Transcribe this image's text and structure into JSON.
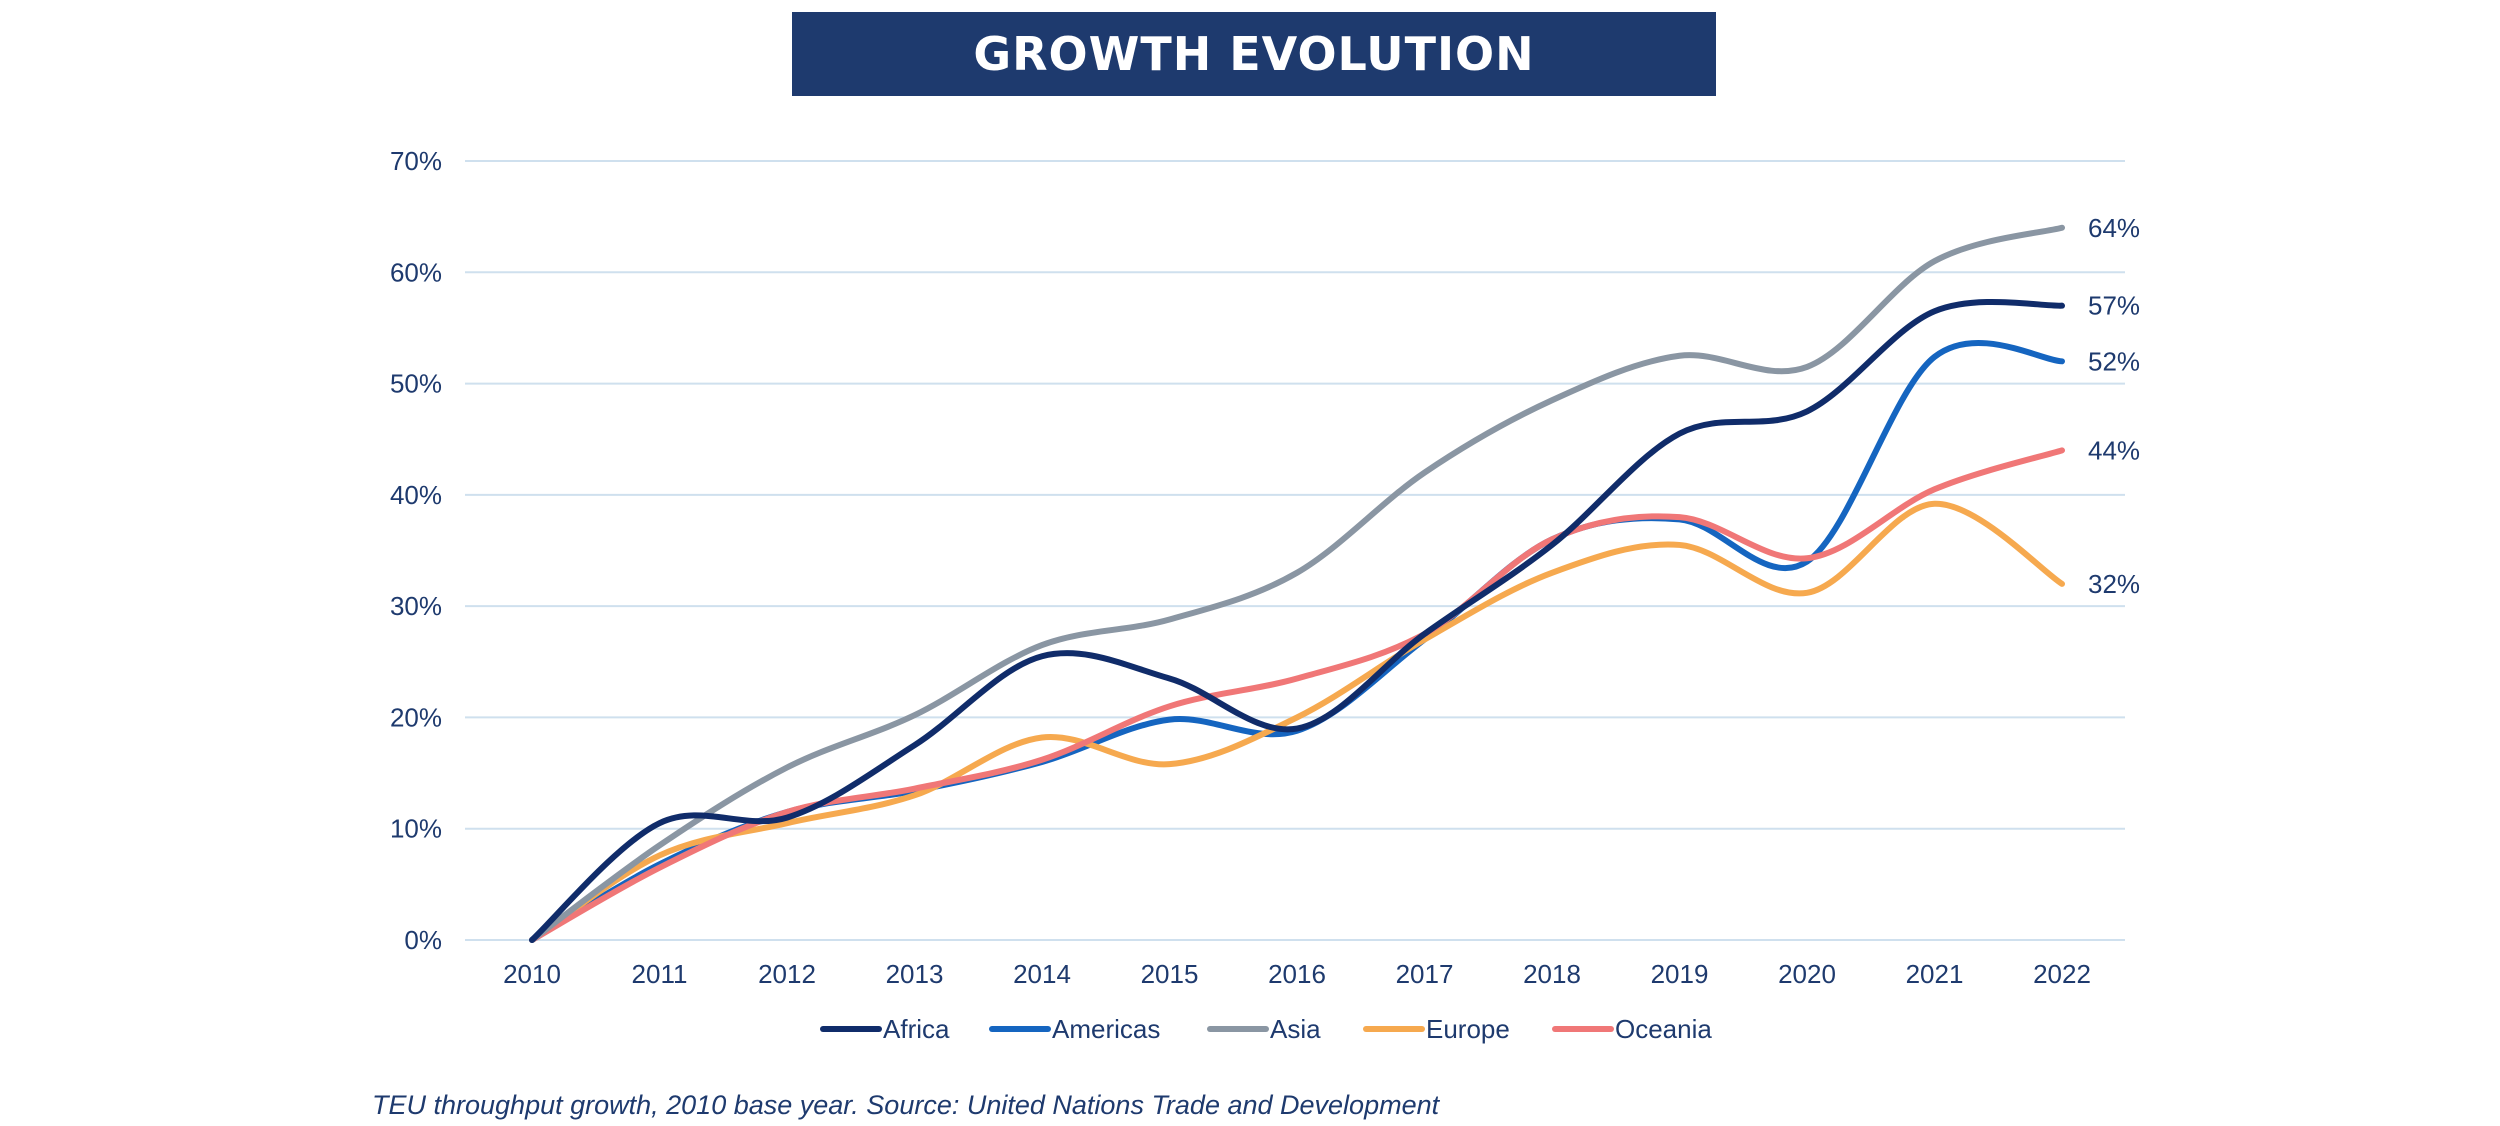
{
  "chart_data": {
    "type": "line",
    "title": "GROWTH EVOLUTION",
    "xlabel": "",
    "ylabel": "",
    "x": [
      "2010",
      "2011",
      "2012",
      "2013",
      "2014",
      "2015",
      "2016",
      "2017",
      "2018",
      "2019",
      "2020",
      "2021",
      "2022"
    ],
    "ylim": [
      0,
      70
    ],
    "yticks": [
      0,
      10,
      20,
      30,
      40,
      50,
      60,
      70
    ],
    "y_tick_suffix": "%",
    "grid": true,
    "legend_position": "bottom",
    "series": [
      {
        "name": "Americas",
        "color": "#1565c0",
        "values": [
          0,
          6.8,
          11.5,
          13.4,
          16,
          19.8,
          18.8,
          27,
          36,
          37.8,
          34,
          52.4,
          52
        ]
      },
      {
        "name": "Europe",
        "color": "#f6a94f",
        "values": [
          0,
          7.6,
          10.5,
          13,
          18.2,
          15.8,
          20,
          27,
          33,
          35.5,
          31.2,
          39.2,
          32
        ]
      },
      {
        "name": "Oceania",
        "color": "#f07777",
        "values": [
          0,
          6.5,
          11.5,
          13.6,
          16.2,
          21,
          23.5,
          27.5,
          36,
          38,
          34.3,
          40.5,
          44
        ]
      },
      {
        "name": "Asia",
        "color": "#8a96a3",
        "values": [
          0,
          8.5,
          15.5,
          20.2,
          26.5,
          28.8,
          33,
          42,
          48.5,
          52.5,
          51.5,
          61,
          64
        ]
      },
      {
        "name": "Africa",
        "color": "#102c6a",
        "values": [
          0,
          10.5,
          11,
          17.5,
          25.5,
          23.5,
          19,
          27.5,
          35.5,
          45.5,
          47.5,
          56.5,
          57
        ]
      }
    ],
    "legend_order": [
      "Africa",
      "Americas",
      "Asia",
      "Europe",
      "Oceania"
    ],
    "end_labels": [
      {
        "value": 64,
        "text": "64%"
      },
      {
        "value": 57,
        "text": "57%"
      },
      {
        "value": 52,
        "text": "52%"
      },
      {
        "value": 44,
        "text": "44%"
      },
      {
        "value": 32,
        "text": "32%"
      }
    ]
  },
  "caption": "TEU throughput growth, 2010 base year. Source: United Nations Trade and Development",
  "colors": {
    "title_bg": "#1e3a6e",
    "text": "#1e3a6e",
    "grid": "#cfe0ee"
  }
}
